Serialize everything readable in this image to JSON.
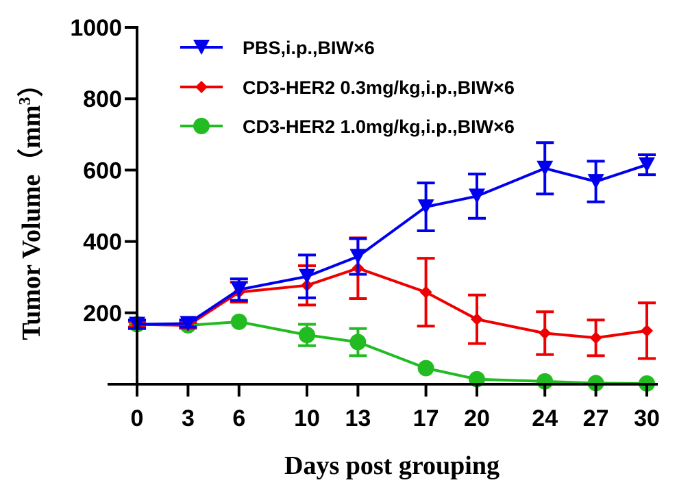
{
  "chart_data": {
    "type": "line",
    "xlabel": "Days post grouping",
    "ylabel": "Tumor Volume（mm",
    "ylabel_sup": "3",
    "ylabel_close": "）",
    "ylim": [
      0,
      1000
    ],
    "yticks": [
      200,
      400,
      600,
      800,
      1000
    ],
    "x": [
      0,
      3,
      6,
      10,
      13,
      17,
      20,
      24,
      27,
      30
    ],
    "x_tick_labels": [
      "0",
      "3",
      "6",
      "10",
      "13",
      "17",
      "20",
      "24",
      "27",
      "30"
    ],
    "legend_position": "top-center",
    "series": [
      {
        "name": "PBS,i.p.,BIW×6",
        "color": "#0000ee",
        "marker": "triangle-down",
        "values": [
          168,
          170,
          265,
          302,
          358,
          497,
          527,
          605,
          568,
          615
        ],
        "errors": [
          12,
          10,
          30,
          60,
          50,
          67,
          62,
          72,
          57,
          28
        ]
      },
      {
        "name": "CD3-HER2 0.3mg/kg,i.p.,BIW×6",
        "color": "#ee0000",
        "marker": "diamond",
        "values": [
          168,
          165,
          258,
          277,
          325,
          258,
          182,
          143,
          130,
          150
        ],
        "errors": [
          8,
          8,
          28,
          55,
          85,
          95,
          68,
          60,
          50,
          78
        ]
      },
      {
        "name": "CD3-HER2 1.0mg/kg,i.p.,BIW×6",
        "color": "#22bb22",
        "marker": "circle",
        "values": [
          168,
          165,
          175,
          138,
          118,
          45,
          14,
          8,
          3,
          2
        ],
        "errors": [
          0,
          0,
          0,
          30,
          38,
          0,
          0,
          0,
          0,
          0
        ]
      }
    ]
  }
}
